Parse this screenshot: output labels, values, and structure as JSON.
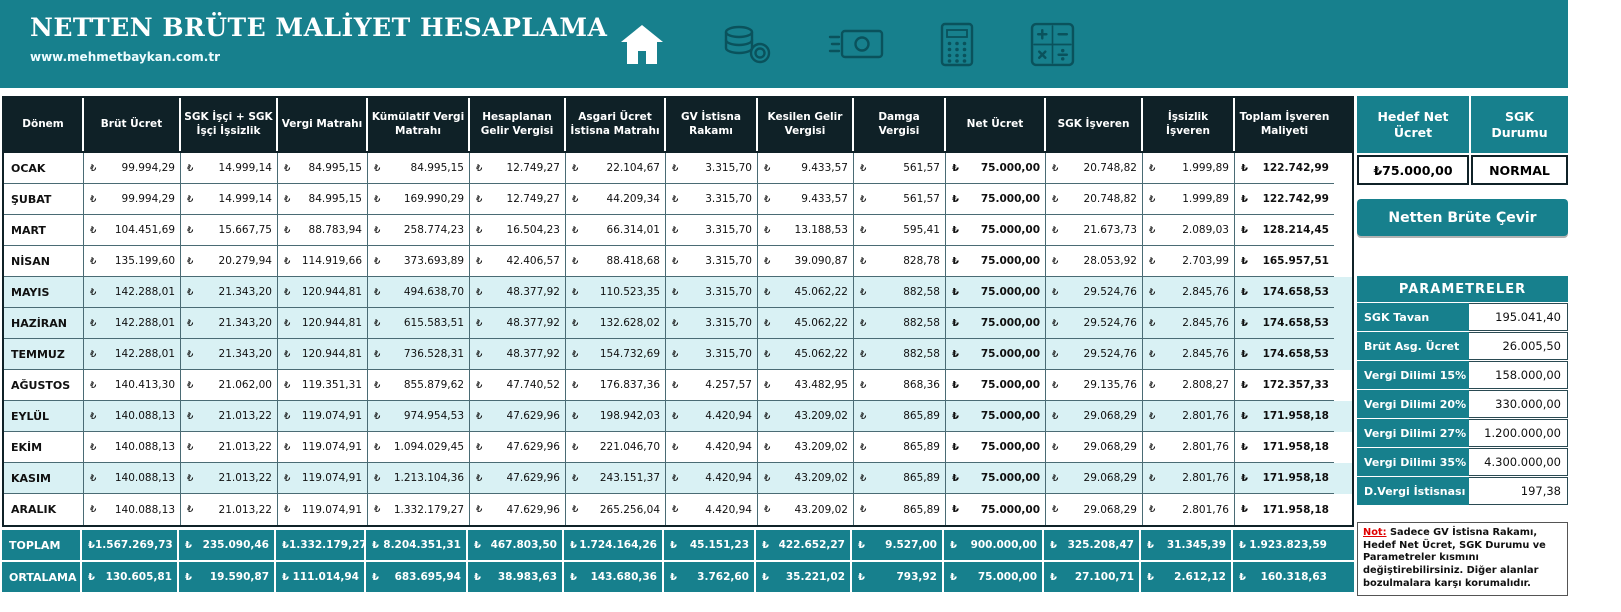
{
  "header": {
    "title": "NETTEN BRÜTE MALİYET HESAPLAMA",
    "website": "www.mehmetbaykan.com.tr",
    "icons": [
      "home-icon",
      "coins-icon",
      "banknote-icon",
      "calculator-icon",
      "math-operations-icon"
    ]
  },
  "table": {
    "currency_symbol": "₺",
    "columns": [
      "Dönem",
      "Brüt Ücret",
      "SGK İşçi + SGK İşçi İşsizlik",
      "Vergi Matrahı",
      "Kümülatif Vergi Matrahı",
      "Hesaplanan Gelir Vergisi",
      "Asgari Ücret İstisna Matrahı",
      "GV İstisna Rakamı",
      "Kesilen Gelir Vergisi",
      "Damga Vergisi",
      "Net Ücret",
      "SGK İşveren",
      "İşsizlik İşveren",
      "Toplam İşveren Maliyeti"
    ],
    "rows": [
      {
        "period": "OCAK",
        "highlighted": false,
        "values": [
          "99.994,29",
          "14.999,14",
          "84.995,15",
          "84.995,15",
          "12.749,27",
          "22.104,67",
          "3.315,70",
          "9.433,57",
          "561,57",
          "75.000,00",
          "20.748,82",
          "1.999,89",
          "122.742,99"
        ]
      },
      {
        "period": "ŞUBAT",
        "highlighted": false,
        "values": [
          "99.994,29",
          "14.999,14",
          "84.995,15",
          "169.990,29",
          "12.749,27",
          "44.209,34",
          "3.315,70",
          "9.433,57",
          "561,57",
          "75.000,00",
          "20.748,82",
          "1.999,89",
          "122.742,99"
        ]
      },
      {
        "period": "MART",
        "highlighted": false,
        "values": [
          "104.451,69",
          "15.667,75",
          "88.783,94",
          "258.774,23",
          "16.504,23",
          "66.314,01",
          "3.315,70",
          "13.188,53",
          "595,41",
          "75.000,00",
          "21.673,73",
          "2.089,03",
          "128.214,45"
        ]
      },
      {
        "period": "NİSAN",
        "highlighted": false,
        "values": [
          "135.199,60",
          "20.279,94",
          "114.919,66",
          "373.693,89",
          "42.406,57",
          "88.418,68",
          "3.315,70",
          "39.090,87",
          "828,78",
          "75.000,00",
          "28.053,92",
          "2.703,99",
          "165.957,51"
        ]
      },
      {
        "period": "MAYIS",
        "highlighted": true,
        "values": [
          "142.288,01",
          "21.343,20",
          "120.944,81",
          "494.638,70",
          "48.377,92",
          "110.523,35",
          "3.315,70",
          "45.062,22",
          "882,58",
          "75.000,00",
          "29.524,76",
          "2.845,76",
          "174.658,53"
        ]
      },
      {
        "period": "HAZİRAN",
        "highlighted": true,
        "values": [
          "142.288,01",
          "21.343,20",
          "120.944,81",
          "615.583,51",
          "48.377,92",
          "132.628,02",
          "3.315,70",
          "45.062,22",
          "882,58",
          "75.000,00",
          "29.524,76",
          "2.845,76",
          "174.658,53"
        ]
      },
      {
        "period": "TEMMUZ",
        "highlighted": true,
        "values": [
          "142.288,01",
          "21.343,20",
          "120.944,81",
          "736.528,31",
          "48.377,92",
          "154.732,69",
          "3.315,70",
          "45.062,22",
          "882,58",
          "75.000,00",
          "29.524,76",
          "2.845,76",
          "174.658,53"
        ]
      },
      {
        "period": "AĞUSTOS",
        "highlighted": false,
        "values": [
          "140.413,30",
          "21.062,00",
          "119.351,31",
          "855.879,62",
          "47.740,52",
          "176.837,36",
          "4.257,57",
          "43.482,95",
          "868,36",
          "75.000,00",
          "29.135,76",
          "2.808,27",
          "172.357,33"
        ]
      },
      {
        "period": "EYLÜL",
        "highlighted": true,
        "values": [
          "140.088,13",
          "21.013,22",
          "119.074,91",
          "974.954,53",
          "47.629,96",
          "198.942,03",
          "4.420,94",
          "43.209,02",
          "865,89",
          "75.000,00",
          "29.068,29",
          "2.801,76",
          "171.958,18"
        ]
      },
      {
        "period": "EKİM",
        "highlighted": false,
        "values": [
          "140.088,13",
          "21.013,22",
          "119.074,91",
          "1.094.029,45",
          "47.629,96",
          "221.046,70",
          "4.420,94",
          "43.209,02",
          "865,89",
          "75.000,00",
          "29.068,29",
          "2.801,76",
          "171.958,18"
        ]
      },
      {
        "period": "KASIM",
        "highlighted": true,
        "values": [
          "140.088,13",
          "21.013,22",
          "119.074,91",
          "1.213.104,36",
          "47.629,96",
          "243.151,37",
          "4.420,94",
          "43.209,02",
          "865,89",
          "75.000,00",
          "29.068,29",
          "2.801,76",
          "171.958,18"
        ]
      },
      {
        "period": "ARALIK",
        "highlighted": false,
        "values": [
          "140.088,13",
          "21.013,22",
          "119.074,91",
          "1.332.179,27",
          "47.629,96",
          "265.256,04",
          "4.420,94",
          "43.209,02",
          "865,89",
          "75.000,00",
          "29.068,29",
          "2.801,76",
          "171.958,18"
        ]
      }
    ],
    "footer_rows": [
      {
        "period": "TOPLAM",
        "values": [
          "1.567.269,73",
          "235.090,46",
          "1.332.179,27",
          "8.204.351,31",
          "467.803,50",
          "1.724.164,26",
          "45.151,23",
          "422.652,27",
          "9.527,00",
          "900.000,00",
          "325.208,47",
          "31.345,39",
          "1.923.823,59"
        ]
      },
      {
        "period": "ORTALAMA",
        "values": [
          "130.605,81",
          "19.590,87",
          "111.014,94",
          "683.695,94",
          "38.983,63",
          "143.680,36",
          "3.762,60",
          "35.221,02",
          "793,92",
          "75.000,00",
          "27.100,71",
          "2.612,12",
          "160.318,63"
        ]
      }
    ]
  },
  "panel": {
    "target_net_label": "Hedef Net Ücret",
    "target_net_value": "₺75.000,00",
    "sgk_status_label": "SGK Durumu",
    "sgk_status_value": "NORMAL",
    "convert_button": "Netten Brüte Çevir",
    "parameters_title": "PARAMETRELER",
    "parameters": [
      {
        "label": "SGK Tavan",
        "value": "195.041,40"
      },
      {
        "label": "Brüt Asg. Ücret",
        "value": "26.005,50"
      },
      {
        "label": "Vergi Dilimi 15%",
        "value": "158.000,00"
      },
      {
        "label": "Vergi Dilimi 20%",
        "value": "330.000,00"
      },
      {
        "label": "Vergi Dilimi 27%",
        "value": "1.200.000,00"
      },
      {
        "label": "Vergi Dilimi 35%",
        "value": "4.300.000,00"
      },
      {
        "label": "D.Vergi İstisnası",
        "value": "197,38"
      }
    ],
    "note_prefix": "Not:",
    "note_text": " Sadece GV İstisna Rakamı, Hedef Net Ücret, SGK Durumu ve Parametreler kısmını değiştirebilirsiniz. Diğer alanlar bozulmalara karşı korumalıdır."
  },
  "colors": {
    "teal": "#17808D",
    "dark": "#0F2127",
    "rowalt": "#D9F1F4",
    "note_red": "#E00000"
  }
}
